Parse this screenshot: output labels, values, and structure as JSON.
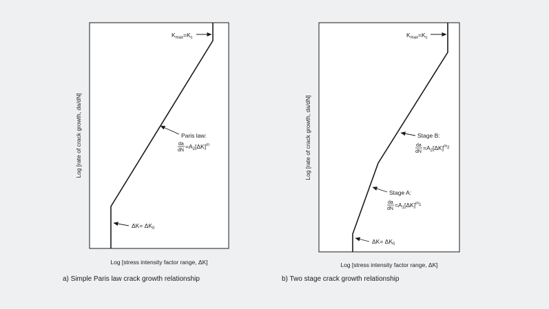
{
  "panel_a": {
    "caption": "a) Simple Paris law crack growth relationship",
    "x_label": "Log [stress intensity factor range, ΔK]",
    "y_label": "Log [rate of crack growth, da/dN]",
    "kmax_label": "K",
    "kmax_sub": "max",
    "kmax_eq": "=K",
    "kmax_sub2": "c",
    "paris_title": "Paris law:",
    "paris_num": "da",
    "paris_den": "dN",
    "paris_rhs": "=A",
    "paris_rhs_sub": "2",
    "paris_rhs_tail": "[ΔK]",
    "paris_exp": "m",
    "threshold_label": "ΔK= ΔK",
    "threshold_sub": "0"
  },
  "panel_b": {
    "caption": "b) Two stage crack growth relationship",
    "x_label": "Log [stress intensity factor range, ΔK]",
    "y_label": "Log [rate of crack growth, da/dN]",
    "kmax_label": "K",
    "kmax_sub": "max",
    "kmax_eq": "=K",
    "kmax_sub2": "c",
    "stageb_title": "Stage B:",
    "stageb_num": "da",
    "stageb_den": "dN",
    "stageb_rhs": "=A",
    "stageb_rhs_sub": "2",
    "stageb_rhs_tail": "[ΔK]",
    "stageb_exp": "m",
    "stageb_exp_sub": "2",
    "stagea_title": "Stage A:",
    "stagea_num": "da",
    "stagea_den": "dN",
    "stagea_rhs": "=A",
    "stagea_rhs_sub": "1",
    "stagea_rhs_tail": "[ΔK]",
    "stagea_exp": "m",
    "stagea_exp_sub": "1",
    "threshold_label": "ΔK= ΔK",
    "threshold_sub": "0"
  }
}
